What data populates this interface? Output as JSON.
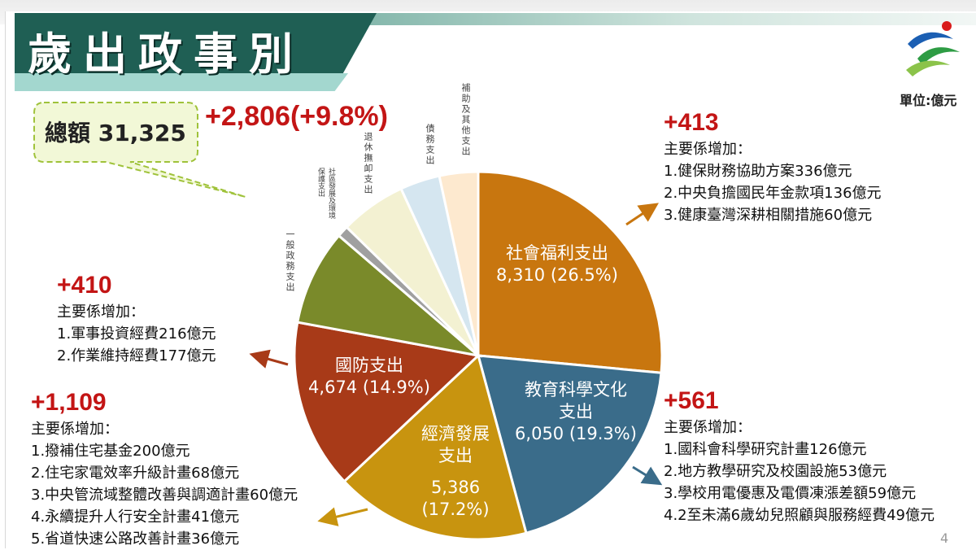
{
  "title": "歲出政事別",
  "unit": "單位:億元",
  "total": "總額 31,325",
  "total_change": "+2,806(+9.8%)",
  "page_number": "4",
  "colors": {
    "social": "#c8760f",
    "education": "#3a6c8a",
    "economic": "#c8940f",
    "defense": "#a83a18",
    "general": "#7a8a2a",
    "community": "#a0a0a0",
    "retirement": "#f3f1d2",
    "debt": "#d5e6f0",
    "other": "#fde9cf",
    "change_red": "#c31515"
  },
  "pie": {
    "start_deg": 0,
    "slices": [
      {
        "key": "social",
        "color": "#c8760f",
        "pct": 26.5
      },
      {
        "key": "education",
        "color": "#3a6c8a",
        "pct": 19.3
      },
      {
        "key": "economic",
        "color": "#c8940f",
        "pct": 17.2
      },
      {
        "key": "defense",
        "color": "#a83a18",
        "pct": 14.9
      },
      {
        "key": "general",
        "color": "#7a8a2a",
        "pct": 8.4
      },
      {
        "key": "community",
        "color": "#a0a0a0",
        "pct": 1.0
      },
      {
        "key": "retirement",
        "color": "#f3f1d2",
        "pct": 5.8
      },
      {
        "key": "debt",
        "color": "#d5e6f0",
        "pct": 3.5
      },
      {
        "key": "other",
        "color": "#fde9cf",
        "pct": 3.4
      }
    ]
  },
  "labels": {
    "social_name": "社會福利支出",
    "social_value": "8,310 (26.5%)",
    "education_name1": "教育科學文化",
    "education_name2": "支出",
    "education_value": "6,050 (19.3%)",
    "economic_name1": "經濟發展",
    "economic_name2": "支出",
    "economic_value1": "5,386",
    "economic_value2": "(17.2%)",
    "defense_name": "國防支出",
    "defense_value": "4,674 (14.9%)",
    "general": "一般政務支出",
    "community": "社區發展及環境保護支出",
    "retirement": "退休撫卹支出",
    "debt": "債務支出",
    "other": "補助及其他支出"
  },
  "blocks": {
    "social": {
      "change": "+413",
      "heading": "主要係增加：",
      "items": [
        "1.健保財務協助方案336億元",
        "2.中央負擔國民年金款項136億元",
        "3.健康臺灣深耕相關措施60億元"
      ]
    },
    "defense": {
      "change": "+410",
      "heading": "主要係增加：",
      "items": [
        "1.軍事投資經費216億元",
        "2.作業維持經費177億元"
      ]
    },
    "economic": {
      "change": "+1,109",
      "heading": "主要係增加：",
      "items": [
        "1.撥補住宅基金200億元",
        "2.住宅家電效率升級計畫68億元",
        "3.中央管流域整體改善與調適計畫60億元",
        "4.永續提升人行安全計畫41億元",
        "5.省道快速公路改善計畫36億元"
      ]
    },
    "education": {
      "change": "+561",
      "heading": "主要係增加：",
      "items": [
        "1.國科會科學研究計畫126億元",
        "2.地方教學研究及校園設施53億元",
        "3.學校用電優惠及電價凍漲差額59億元",
        "4.2至未滿6歲幼兒照顧與服務經費49億元"
      ]
    }
  }
}
